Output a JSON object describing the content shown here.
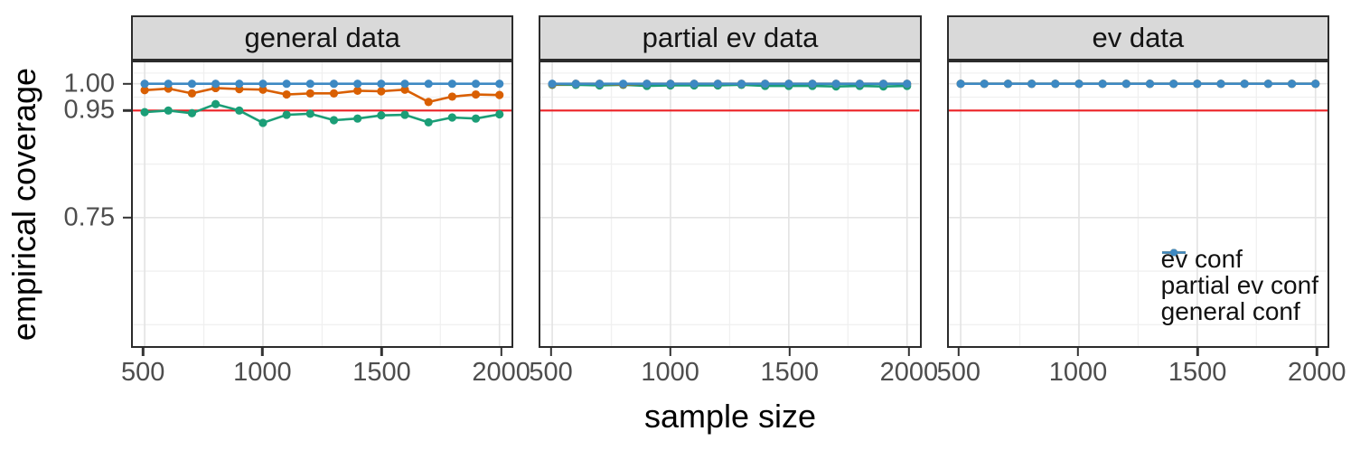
{
  "chart_data": {
    "type": "line",
    "title": "",
    "xlabel": "sample size",
    "ylabel": "empirical coverage",
    "grid": "on",
    "x": [
      500,
      600,
      700,
      800,
      900,
      1000,
      1100,
      1200,
      1300,
      1400,
      1500,
      1600,
      1700,
      1800,
      1900,
      2000
    ],
    "x_ticks": [
      {
        "v": 500,
        "label": "500"
      },
      {
        "v": 1000,
        "label": "1000"
      },
      {
        "v": 1500,
        "label": "1500"
      },
      {
        "v": 2000,
        "label": "2000"
      }
    ],
    "x_minor": [
      750,
      1250,
      1750
    ],
    "xlim": [
      450,
      2052
    ],
    "y_ticks": [
      {
        "v": 1.0,
        "label": "1.00"
      },
      {
        "v": 0.95,
        "label": "0.95"
      },
      {
        "v": 0.75,
        "label": "0.75"
      }
    ],
    "y_minor": [
      1.02,
      0.975,
      0.85,
      0.65,
      0.55
    ],
    "ylim": [
      0.51,
      1.04
    ],
    "reference_line": {
      "y": 0.95,
      "color": "#EC2125"
    },
    "colors": {
      "grid_major": "#e4e4e4",
      "grid_minor": "#f0f0f0",
      "panel_border": "#2b2b2b",
      "strip_background": "#d9d9d9",
      "tick_label": "#4d4d4d"
    },
    "legend": {
      "position": "inside bottom-right of third facet",
      "items": [
        {
          "label": "ev conf",
          "color": "#1B9E77"
        },
        {
          "label": "partial ev conf",
          "color": "#D95F02"
        },
        {
          "label": "general conf",
          "color": "#3D89C3"
        }
      ]
    },
    "facets": [
      {
        "label": "general data",
        "series": [
          {
            "name": "ev conf",
            "color": "#1B9E77",
            "values": [
              0.947,
              0.95,
              0.945,
              0.962,
              0.95,
              0.927,
              0.942,
              0.944,
              0.932,
              0.935,
              0.941,
              0.942,
              0.928,
              0.937,
              0.935,
              0.943
            ]
          },
          {
            "name": "partial ev conf",
            "color": "#D95F02",
            "values": [
              0.988,
              0.991,
              0.982,
              0.992,
              0.99,
              0.989,
              0.98,
              0.982,
              0.982,
              0.987,
              0.986,
              0.989,
              0.966,
              0.976,
              0.98,
              0.979
            ]
          },
          {
            "name": "general conf",
            "color": "#3D89C3",
            "values": [
              1.0,
              1.0,
              1.0,
              1.0,
              1.0,
              1.0,
              1.0,
              1.0,
              1.0,
              1.0,
              1.0,
              1.0,
              1.0,
              1.0,
              1.0,
              1.0
            ]
          }
        ]
      },
      {
        "label": "partial ev data",
        "series": [
          {
            "name": "ev conf",
            "color": "#1B9E77",
            "values": [
              0.998,
              0.998,
              0.997,
              0.998,
              0.996,
              0.997,
              0.997,
              0.997,
              0.998,
              0.996,
              0.996,
              0.996,
              0.995,
              0.996,
              0.995,
              0.996
            ]
          },
          {
            "name": "partial ev conf",
            "color": "#D95F02",
            "values": [
              0.999,
              1.0,
              1.0,
              0.999,
              1.0,
              1.0,
              1.0,
              1.0,
              1.0,
              1.0,
              1.0,
              1.0,
              1.0,
              1.0,
              1.0,
              1.0
            ]
          },
          {
            "name": "general conf",
            "color": "#3D89C3",
            "values": [
              1.0,
              1.0,
              1.0,
              1.0,
              1.0,
              1.0,
              1.0,
              1.0,
              1.0,
              1.0,
              1.0,
              1.0,
              1.0,
              1.0,
              1.0,
              1.0
            ]
          }
        ]
      },
      {
        "label": "ev data",
        "series": [
          {
            "name": "ev conf",
            "color": "#1B9E77",
            "values": [
              1.0,
              1.0,
              1.0,
              1.0,
              1.0,
              1.0,
              1.0,
              1.0,
              1.0,
              1.0,
              1.0,
              1.0,
              1.0,
              1.0,
              1.0,
              1.0
            ]
          },
          {
            "name": "partial ev conf",
            "color": "#D95F02",
            "values": [
              1.0,
              1.0,
              1.0,
              1.0,
              1.0,
              1.0,
              1.0,
              1.0,
              1.0,
              1.0,
              1.0,
              1.0,
              1.0,
              1.0,
              1.0,
              1.0
            ]
          },
          {
            "name": "general conf",
            "color": "#3D89C3",
            "values": [
              1.0,
              1.0,
              1.0,
              1.0,
              1.0,
              1.0,
              1.0,
              1.0,
              1.0,
              1.0,
              1.0,
              1.0,
              1.0,
              1.0,
              1.0,
              1.0
            ]
          }
        ]
      }
    ]
  }
}
